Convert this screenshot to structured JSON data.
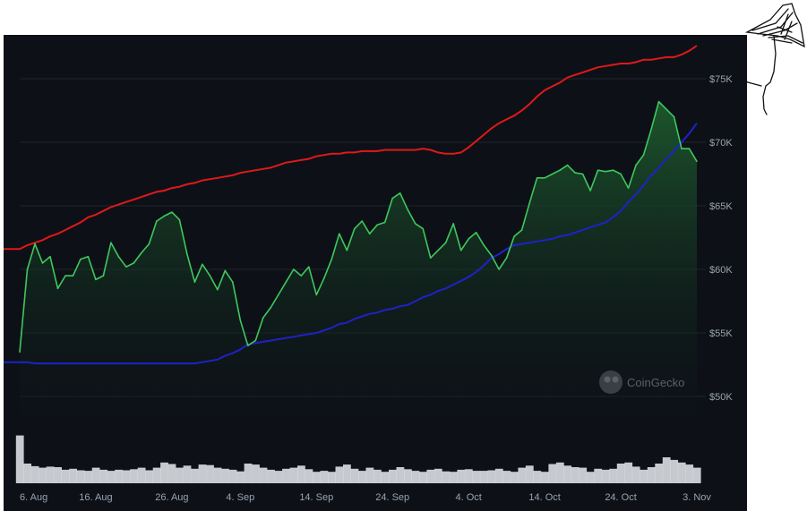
{
  "chart_data": {
    "type": "area",
    "title": "",
    "xlabel": "",
    "ylabel": "",
    "ylim": [
      47500,
      76500
    ],
    "grid": true,
    "legend": "none",
    "y_ticks": [
      {
        "value": 50000,
        "label": "$50K"
      },
      {
        "value": 55000,
        "label": "$55K"
      },
      {
        "value": 60000,
        "label": "$60K"
      },
      {
        "value": 65000,
        "label": "$65K"
      },
      {
        "value": 70000,
        "label": "$70K"
      },
      {
        "value": 75000,
        "label": "$75K"
      }
    ],
    "x_ticks": [
      "6. Aug",
      "16. Aug",
      "26. Aug",
      "4. Sep",
      "14. Sep",
      "24. Sep",
      "4. Oct",
      "14. Oct",
      "24. Oct",
      "3. Nov"
    ],
    "x_tick_index": [
      0,
      10,
      20,
      29,
      39,
      49,
      59,
      69,
      79,
      89
    ],
    "colors": {
      "price": "#3fc85c",
      "upper": "#e01919",
      "lower": "#1e22c8",
      "volume": "#e8eaee",
      "area": "#1d5a2e"
    },
    "price": [
      53500,
      60000,
      62000,
      60500,
      61000,
      58500,
      59500,
      59500,
      60800,
      61000,
      59200,
      59500,
      62100,
      61000,
      60200,
      60500,
      61300,
      62000,
      63800,
      64200,
      64500,
      63900,
      61200,
      59000,
      60400,
      59500,
      58400,
      59900,
      59000,
      56000,
      54000,
      54400,
      56200,
      57000,
      58000,
      59000,
      60000,
      59500,
      60200,
      58000,
      59300,
      60800,
      62800,
      61500,
      63200,
      63800,
      62800,
      63500,
      63700,
      65600,
      66000,
      64700,
      63600,
      63200,
      60900,
      61500,
      62100,
      63600,
      61500,
      62400,
      62900,
      61900,
      61100,
      60000,
      60900,
      62600,
      63100,
      65200,
      67200,
      67200,
      67500,
      67800,
      68200,
      67600,
      67500,
      66200,
      67800,
      67700,
      67800,
      67500,
      66400,
      68200,
      69000,
      71000,
      73200,
      72600,
      72000,
      69500,
      69500,
      68500
    ],
    "upper_band": [
      61600,
      61900,
      62100,
      62300,
      62600,
      62800,
      63100,
      63400,
      63700,
      64100,
      64300,
      64600,
      64900,
      65100,
      65300,
      65500,
      65700,
      65900,
      66100,
      66200,
      66400,
      66500,
      66700,
      66800,
      67000,
      67100,
      67200,
      67300,
      67400,
      67600,
      67700,
      67800,
      67900,
      68000,
      68200,
      68400,
      68500,
      68600,
      68700,
      68900,
      69000,
      69100,
      69100,
      69200,
      69200,
      69300,
      69300,
      69300,
      69400,
      69400,
      69400,
      69400,
      69400,
      69500,
      69400,
      69200,
      69100,
      69100,
      69200,
      69600,
      70100,
      70600,
      71100,
      71500,
      71800,
      72100,
      72500,
      73000,
      73600,
      74100,
      74400,
      74700,
      75100,
      75300,
      75500,
      75700,
      75900,
      76000,
      76100,
      76200,
      76200,
      76300,
      76500,
      76500,
      76600,
      76700,
      76700,
      76900,
      77200,
      77600
    ],
    "lower_band": [
      52700,
      52700,
      52600,
      52600,
      52600,
      52600,
      52600,
      52600,
      52600,
      52600,
      52600,
      52600,
      52600,
      52600,
      52600,
      52600,
      52600,
      52600,
      52600,
      52600,
      52600,
      52600,
      52600,
      52600,
      52700,
      52800,
      52900,
      53200,
      53400,
      53700,
      54100,
      54200,
      54300,
      54400,
      54500,
      54600,
      54700,
      54800,
      54900,
      55000,
      55200,
      55400,
      55700,
      55800,
      56100,
      56300,
      56500,
      56600,
      56800,
      56900,
      57100,
      57200,
      57500,
      57800,
      58000,
      58300,
      58500,
      58800,
      59100,
      59400,
      59800,
      60300,
      60900,
      61200,
      61600,
      61900,
      62000,
      62100,
      62200,
      62300,
      62400,
      62600,
      62700,
      62900,
      63100,
      63300,
      63500,
      63700,
      64100,
      64600,
      65300,
      65900,
      66600,
      67400,
      68000,
      68700,
      69300,
      70000,
      70700,
      71500
    ],
    "volume": [
      0.92,
      0.38,
      0.33,
      0.3,
      0.32,
      0.31,
      0.26,
      0.28,
      0.25,
      0.24,
      0.3,
      0.26,
      0.24,
      0.26,
      0.25,
      0.27,
      0.3,
      0.25,
      0.3,
      0.4,
      0.37,
      0.3,
      0.34,
      0.28,
      0.36,
      0.35,
      0.3,
      0.28,
      0.26,
      0.23,
      0.38,
      0.36,
      0.3,
      0.26,
      0.24,
      0.28,
      0.3,
      0.34,
      0.27,
      0.22,
      0.24,
      0.22,
      0.32,
      0.36,
      0.28,
      0.24,
      0.3,
      0.26,
      0.22,
      0.26,
      0.31,
      0.27,
      0.24,
      0.22,
      0.26,
      0.28,
      0.23,
      0.22,
      0.26,
      0.27,
      0.24,
      0.24,
      0.25,
      0.28,
      0.24,
      0.22,
      0.3,
      0.34,
      0.24,
      0.22,
      0.37,
      0.4,
      0.34,
      0.31,
      0.3,
      0.22,
      0.28,
      0.26,
      0.28,
      0.38,
      0.4,
      0.32,
      0.26,
      0.31,
      0.38,
      0.5,
      0.45,
      0.4,
      0.36,
      0.3
    ]
  },
  "watermark": {
    "text": "CoinGecko"
  },
  "annotation": {
    "name": "hand-drawn-umbrella-doodle"
  }
}
